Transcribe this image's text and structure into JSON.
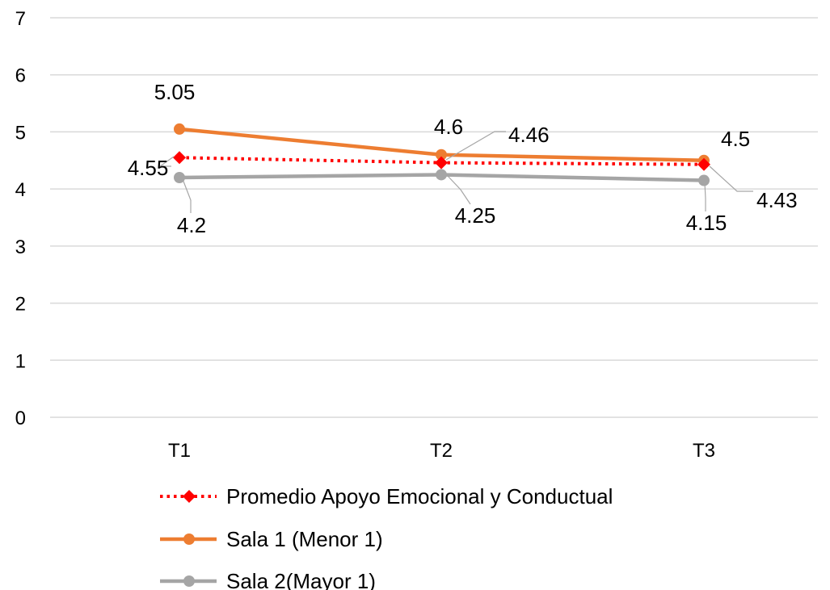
{
  "chart_data": {
    "type": "line",
    "title": "",
    "xlabel": "",
    "ylabel": "",
    "categories": [
      "T1",
      "T2",
      "T3"
    ],
    "ylim": [
      0,
      7
    ],
    "yticks": [
      0,
      1,
      2,
      3,
      4,
      5,
      6,
      7
    ],
    "grid": "horizontal",
    "legend_position": "bottom",
    "series": [
      {
        "name": "Promedio Apoyo Emocional y Conductual",
        "values": [
          4.55,
          4.46,
          4.43
        ],
        "labels": [
          "4.55",
          "4.46",
          "4.43"
        ],
        "color": "#ff0000",
        "line_style": "dotted",
        "marker": "diamond"
      },
      {
        "name": "Sala 1 (Menor 1)",
        "values": [
          5.05,
          4.6,
          4.5
        ],
        "labels": [
          "5.05",
          "4.6",
          "4.5"
        ],
        "color": "#ed7d31",
        "line_style": "solid",
        "marker": "circle"
      },
      {
        "name": "Sala 2(Mayor 1)",
        "values": [
          4.2,
          4.25,
          4.15
        ],
        "labels": [
          "4.2",
          "4.25",
          "4.15"
        ],
        "color": "#a5a5a5",
        "line_style": "solid",
        "marker": "circle"
      }
    ]
  }
}
